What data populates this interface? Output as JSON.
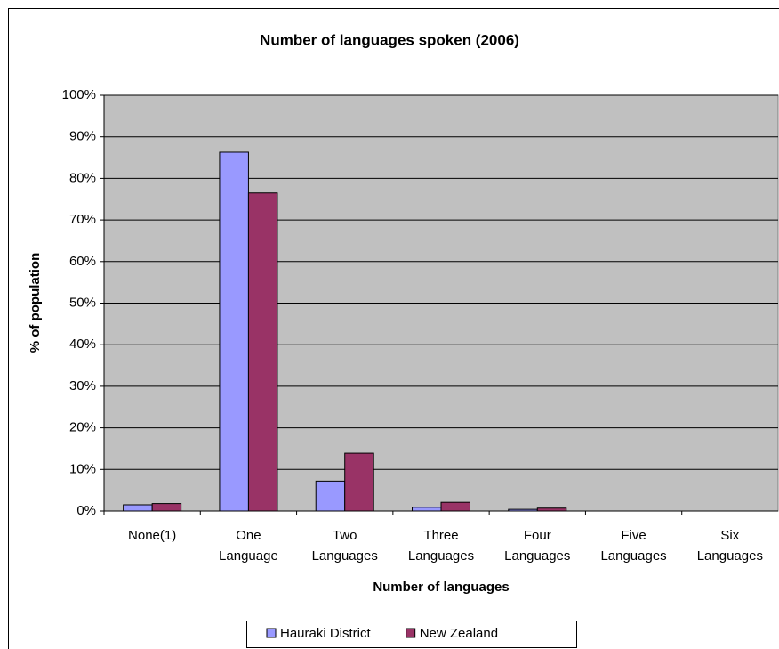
{
  "chart_data": {
    "type": "bar",
    "title": "Number of languages spoken (2006)",
    "x_label": "Number of languages",
    "y_label": "% of population",
    "categories": [
      "None(1)",
      "One Language",
      "Two Languages",
      "Three Languages",
      "Four Languages",
      "Five Languages",
      "Six Languages"
    ],
    "series": [
      {
        "name": "Hauraki District",
        "color": "#9999ff",
        "values": [
          1.5,
          86.3,
          7.2,
          0.9,
          0.4,
          0,
          0
        ]
      },
      {
        "name": "New Zealand",
        "color": "#993366",
        "values": [
          1.8,
          76.5,
          13.9,
          2.1,
          0.7,
          0,
          0
        ]
      }
    ],
    "ylim": [
      0,
      100
    ],
    "yticks": [
      {
        "value": 0,
        "label": "0%"
      },
      {
        "value": 10,
        "label": "10%"
      },
      {
        "value": 20,
        "label": "20%"
      },
      {
        "value": 30,
        "label": "30%"
      },
      {
        "value": 40,
        "label": "40%"
      },
      {
        "value": 50,
        "label": "50%"
      },
      {
        "value": 60,
        "label": "60%"
      },
      {
        "value": 70,
        "label": "70%"
      },
      {
        "value": 80,
        "label": "80%"
      },
      {
        "value": 90,
        "label": "90%"
      },
      {
        "value": 100,
        "label": "100%"
      }
    ],
    "grid": true,
    "legend": "bottom",
    "plot_background": "#c0c0c0"
  }
}
